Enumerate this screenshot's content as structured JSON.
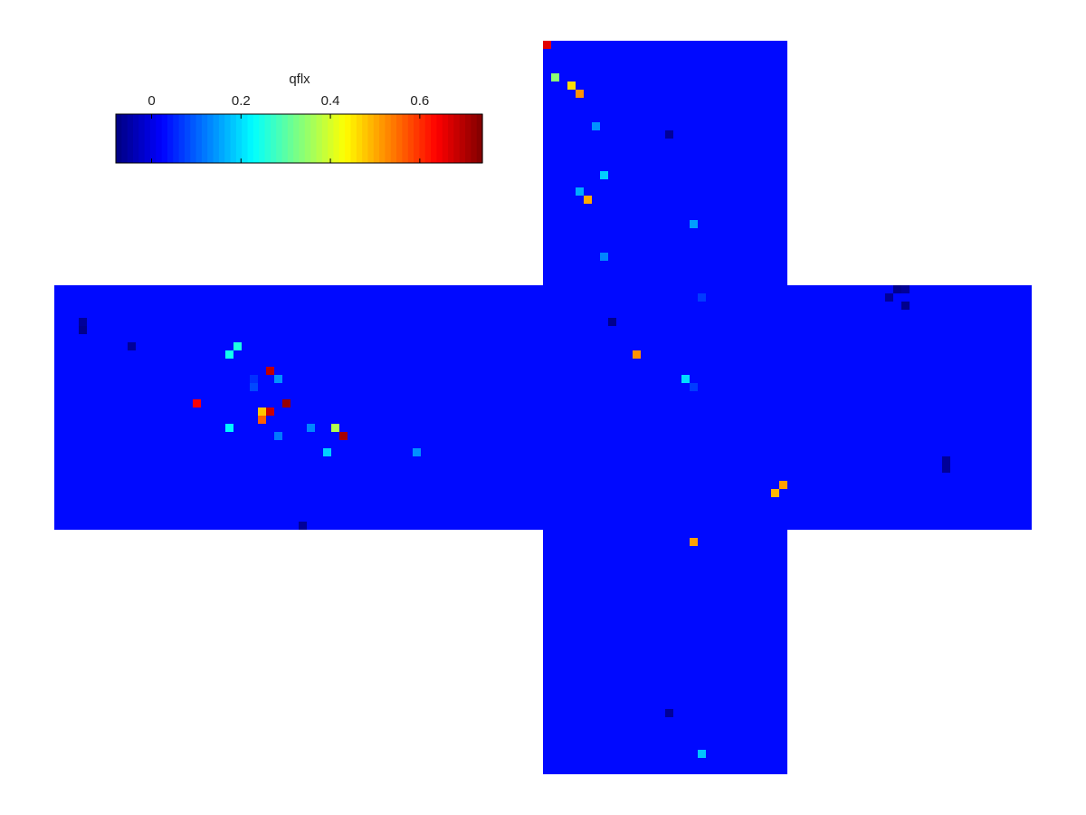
{
  "chart_data": {
    "type": "heatmap",
    "title": "",
    "xlabel": "",
    "ylabel": "",
    "colormap": "jet",
    "background_value": 0.03,
    "colorbar": {
      "label": "qflx",
      "range": [
        -0.08,
        0.74
      ],
      "ticks": [
        0,
        0.2,
        0.4,
        0.6
      ],
      "tick_labels": [
        "0",
        "0.2",
        "0.4",
        "0.6"
      ],
      "orientation": "horizontal",
      "placement": "top-left"
    },
    "panels": [
      {
        "name": "top",
        "cols": 30,
        "rows": 30
      },
      {
        "name": "left",
        "cols": 60,
        "rows": 30
      },
      {
        "name": "center",
        "cols": 30,
        "rows": 30
      },
      {
        "name": "right",
        "cols": 30,
        "rows": 30
      },
      {
        "name": "bottom",
        "cols": 30,
        "rows": 30
      }
    ],
    "cells": [
      {
        "panel": "top",
        "col": 0,
        "row": 0,
        "value": 0.66
      },
      {
        "panel": "top",
        "col": 1,
        "row": 4,
        "value": 0.34
      },
      {
        "panel": "top",
        "col": 3,
        "row": 5,
        "value": 0.46
      },
      {
        "panel": "top",
        "col": 4,
        "row": 6,
        "value": 0.52
      },
      {
        "panel": "top",
        "col": 6,
        "row": 10,
        "value": 0.14
      },
      {
        "panel": "top",
        "col": 15,
        "row": 11,
        "value": -0.06
      },
      {
        "panel": "top",
        "col": 7,
        "row": 16,
        "value": 0.19
      },
      {
        "panel": "top",
        "col": 4,
        "row": 18,
        "value": 0.16
      },
      {
        "panel": "top",
        "col": 5,
        "row": 19,
        "value": 0.5
      },
      {
        "panel": "top",
        "col": 18,
        "row": 22,
        "value": 0.15
      },
      {
        "panel": "top",
        "col": 7,
        "row": 26,
        "value": 0.13
      },
      {
        "panel": "left",
        "col": 3,
        "row": 4,
        "value": -0.06
      },
      {
        "panel": "left",
        "col": 3,
        "row": 5,
        "value": -0.07
      },
      {
        "panel": "left",
        "col": 9,
        "row": 7,
        "value": -0.06
      },
      {
        "panel": "left",
        "col": 22,
        "row": 7,
        "value": 0.25
      },
      {
        "panel": "left",
        "col": 21,
        "row": 8,
        "value": 0.24
      },
      {
        "panel": "left",
        "col": 26,
        "row": 10,
        "value": 0.69
      },
      {
        "panel": "left",
        "col": 27,
        "row": 11,
        "value": 0.14
      },
      {
        "panel": "left",
        "col": 24,
        "row": 11,
        "value": 0.06
      },
      {
        "panel": "left",
        "col": 24,
        "row": 12,
        "value": 0.08
      },
      {
        "panel": "left",
        "col": 17,
        "row": 14,
        "value": 0.64
      },
      {
        "panel": "left",
        "col": 28,
        "row": 14,
        "value": 0.72
      },
      {
        "panel": "left",
        "col": 25,
        "row": 15,
        "value": 0.48
      },
      {
        "panel": "left",
        "col": 26,
        "row": 15,
        "value": 0.68
      },
      {
        "panel": "left",
        "col": 25,
        "row": 16,
        "value": 0.56
      },
      {
        "panel": "left",
        "col": 21,
        "row": 17,
        "value": 0.22
      },
      {
        "panel": "left",
        "col": 31,
        "row": 17,
        "value": 0.13
      },
      {
        "panel": "left",
        "col": 34,
        "row": 17,
        "value": 0.37
      },
      {
        "panel": "left",
        "col": 27,
        "row": 18,
        "value": 0.12
      },
      {
        "panel": "left",
        "col": 35,
        "row": 18,
        "value": 0.71
      },
      {
        "panel": "left",
        "col": 33,
        "row": 20,
        "value": 0.19
      },
      {
        "panel": "left",
        "col": 44,
        "row": 20,
        "value": 0.14
      },
      {
        "panel": "left",
        "col": 30,
        "row": 29,
        "value": -0.06
      },
      {
        "panel": "center",
        "col": 8,
        "row": 4,
        "value": -0.07
      },
      {
        "panel": "center",
        "col": 11,
        "row": 8,
        "value": 0.52
      },
      {
        "panel": "center",
        "col": 19,
        "row": 1,
        "value": 0.07
      },
      {
        "panel": "center",
        "col": 17,
        "row": 11,
        "value": 0.2
      },
      {
        "panel": "center",
        "col": 18,
        "row": 12,
        "value": 0.07
      },
      {
        "panel": "center",
        "col": 29,
        "row": 24,
        "value": 0.51
      },
      {
        "panel": "center",
        "col": 28,
        "row": 25,
        "value": 0.49
      },
      {
        "panel": "right",
        "col": 13,
        "row": 0,
        "value": -0.07
      },
      {
        "panel": "right",
        "col": 14,
        "row": 0,
        "value": -0.06
      },
      {
        "panel": "right",
        "col": 12,
        "row": 1,
        "value": -0.06
      },
      {
        "panel": "right",
        "col": 14,
        "row": 2,
        "value": -0.07
      },
      {
        "panel": "right",
        "col": 19,
        "row": 21,
        "value": -0.06
      },
      {
        "panel": "right",
        "col": 19,
        "row": 22,
        "value": -0.06
      },
      {
        "panel": "bottom",
        "col": 18,
        "row": 1,
        "value": 0.51
      },
      {
        "panel": "bottom",
        "col": 15,
        "row": 22,
        "value": -0.06
      },
      {
        "panel": "bottom",
        "col": 19,
        "row": 27,
        "value": 0.18
      }
    ]
  }
}
